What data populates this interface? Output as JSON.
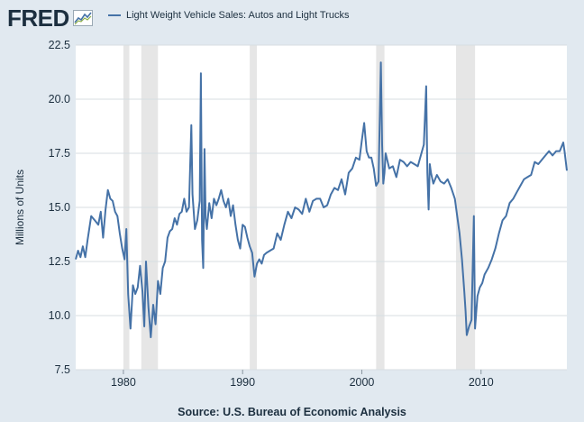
{
  "header": {
    "logo_text": "FRED",
    "legend_label": "Light Weight Vehicle Sales: Autos and Light Trucks"
  },
  "footer": {
    "source": "Source: U.S. Bureau of Economic Analysis"
  },
  "colors": {
    "background": "#e1e9f0",
    "plot_background": "#ffffff",
    "series": "#4572a7",
    "recession": "#e6e6e6",
    "text": "#1c2f3f",
    "grid": "#d7dde2"
  },
  "icons": [
    "fred-chart-icon"
  ],
  "chart_data": {
    "type": "line",
    "title": "",
    "xlabel": "",
    "ylabel": "Millions of Units",
    "xlim": [
      1976,
      2017.2
    ],
    "ylim": [
      7.5,
      22.5
    ],
    "grid": true,
    "legend_position": "top-left",
    "x_ticks": [
      {
        "value": 1980,
        "label": "1980"
      },
      {
        "value": 1990,
        "label": "1990"
      },
      {
        "value": 2000,
        "label": "2000"
      },
      {
        "value": 2010,
        "label": "2010"
      }
    ],
    "y_ticks": [
      {
        "value": 7.5,
        "label": "7.5"
      },
      {
        "value": 10,
        "label": "10.0"
      },
      {
        "value": 12.5,
        "label": "12.5"
      },
      {
        "value": 15,
        "label": "15.0"
      },
      {
        "value": 17.5,
        "label": "17.5"
      },
      {
        "value": 20,
        "label": "20.0"
      },
      {
        "value": 22.5,
        "label": "22.5"
      }
    ],
    "recessions": [
      [
        1980.0,
        1980.5
      ],
      [
        1981.5,
        1982.9
      ],
      [
        1990.6,
        1991.2
      ],
      [
        2001.2,
        2001.9
      ],
      [
        2007.9,
        2009.5
      ]
    ],
    "series": [
      {
        "name": "Light Weight Vehicle Sales: Autos and Light Trucks",
        "x": [
          1976.0,
          1976.2,
          1976.4,
          1976.6,
          1976.8,
          1977.0,
          1977.3,
          1977.6,
          1977.9,
          1978.1,
          1978.3,
          1978.5,
          1978.7,
          1978.9,
          1979.1,
          1979.3,
          1979.5,
          1979.7,
          1979.9,
          1980.1,
          1980.25,
          1980.4,
          1980.6,
          1980.8,
          1981.0,
          1981.2,
          1981.4,
          1981.6,
          1981.75,
          1981.9,
          1982.1,
          1982.3,
          1982.5,
          1982.7,
          1982.9,
          1983.1,
          1983.3,
          1983.5,
          1983.7,
          1983.9,
          1984.1,
          1984.3,
          1984.5,
          1984.7,
          1984.9,
          1985.1,
          1985.3,
          1985.5,
          1985.7,
          1985.8,
          1986.0,
          1986.2,
          1986.4,
          1986.5,
          1986.6,
          1986.7,
          1986.8,
          1986.9,
          1987.0,
          1987.2,
          1987.4,
          1987.6,
          1987.8,
          1988.0,
          1988.2,
          1988.4,
          1988.6,
          1988.8,
          1989.0,
          1989.2,
          1989.4,
          1989.6,
          1989.8,
          1990.0,
          1990.2,
          1990.4,
          1990.6,
          1990.8,
          1991.0,
          1991.2,
          1991.4,
          1991.6,
          1991.8,
          1992.0,
          1992.3,
          1992.6,
          1992.9,
          1993.2,
          1993.5,
          1993.8,
          1994.1,
          1994.4,
          1994.7,
          1995.0,
          1995.3,
          1995.6,
          1995.9,
          1996.2,
          1996.5,
          1996.8,
          1997.1,
          1997.4,
          1997.7,
          1998.0,
          1998.3,
          1998.6,
          1998.9,
          1999.2,
          1999.5,
          1999.8,
          2000.0,
          2000.2,
          2000.4,
          2000.6,
          2000.8,
          2001.0,
          2001.2,
          2001.4,
          2001.6,
          2001.7,
          2001.8,
          2001.9,
          2002.0,
          2002.3,
          2002.6,
          2002.9,
          2003.2,
          2003.5,
          2003.8,
          2004.1,
          2004.4,
          2004.7,
          2005.0,
          2005.2,
          2005.4,
          2005.5,
          2005.6,
          2005.7,
          2005.8,
          2006.0,
          2006.3,
          2006.6,
          2006.9,
          2007.2,
          2007.5,
          2007.8,
          2008.0,
          2008.2,
          2008.4,
          2008.6,
          2008.7,
          2008.8,
          2009.0,
          2009.2,
          2009.4,
          2009.5,
          2009.6,
          2009.7,
          2009.8,
          2009.9,
          2010.1,
          2010.3,
          2010.6,
          2010.9,
          2011.2,
          2011.5,
          2011.8,
          2012.1,
          2012.4,
          2012.7,
          2013.0,
          2013.3,
          2013.6,
          2013.9,
          2014.2,
          2014.5,
          2014.8,
          2015.1,
          2015.4,
          2015.7,
          2016.0,
          2016.3,
          2016.6,
          2016.9,
          2017.0,
          2017.2
        ],
        "values": [
          12.6,
          13.0,
          12.7,
          13.2,
          12.7,
          13.5,
          14.6,
          14.4,
          14.2,
          14.8,
          13.6,
          14.9,
          15.8,
          15.4,
          15.3,
          14.8,
          14.6,
          13.8,
          13.1,
          12.6,
          14.0,
          11.0,
          9.4,
          11.4,
          11.0,
          11.3,
          12.3,
          11.1,
          9.5,
          12.5,
          10.4,
          9.0,
          10.5,
          9.6,
          11.6,
          11.0,
          12.2,
          12.5,
          13.6,
          13.9,
          14.0,
          14.5,
          14.2,
          14.7,
          14.8,
          15.4,
          14.8,
          15.0,
          18.8,
          15.6,
          14.0,
          14.4,
          15.3,
          21.2,
          13.5,
          12.2,
          17.7,
          14.5,
          14.0,
          15.2,
          14.5,
          15.4,
          15.1,
          15.4,
          15.8,
          15.3,
          15.0,
          15.4,
          14.6,
          15.1,
          14.2,
          13.5,
          13.1,
          14.2,
          14.1,
          13.6,
          13.2,
          12.9,
          11.8,
          12.4,
          12.6,
          12.4,
          12.8,
          12.9,
          13.0,
          13.1,
          13.8,
          13.5,
          14.2,
          14.8,
          14.5,
          15.0,
          14.9,
          14.7,
          15.4,
          14.8,
          15.3,
          15.4,
          15.4,
          15.0,
          15.1,
          15.6,
          15.9,
          15.8,
          16.3,
          15.6,
          16.6,
          16.8,
          17.3,
          17.2,
          18.1,
          18.9,
          17.6,
          17.3,
          17.3,
          16.8,
          16.0,
          16.2,
          21.7,
          17.9,
          16.1,
          16.6,
          17.5,
          16.8,
          16.9,
          16.4,
          17.2,
          17.1,
          16.9,
          17.1,
          17.0,
          16.9,
          17.5,
          17.9,
          20.6,
          16.6,
          14.9,
          17.0,
          16.6,
          16.1,
          16.5,
          16.2,
          16.1,
          16.3,
          15.9,
          15.4,
          14.6,
          13.8,
          12.6,
          11.1,
          10.2,
          9.1,
          9.5,
          9.8,
          14.6,
          9.4,
          10.2,
          10.9,
          11.1,
          11.3,
          11.5,
          11.9,
          12.2,
          12.6,
          13.1,
          13.8,
          14.4,
          14.6,
          15.2,
          15.4,
          15.7,
          16.0,
          16.3,
          16.4,
          16.5,
          17.1,
          17.0,
          17.2,
          17.4,
          17.6,
          17.4,
          17.6,
          17.6,
          18.0,
          17.6,
          16.7
        ]
      }
    ]
  }
}
